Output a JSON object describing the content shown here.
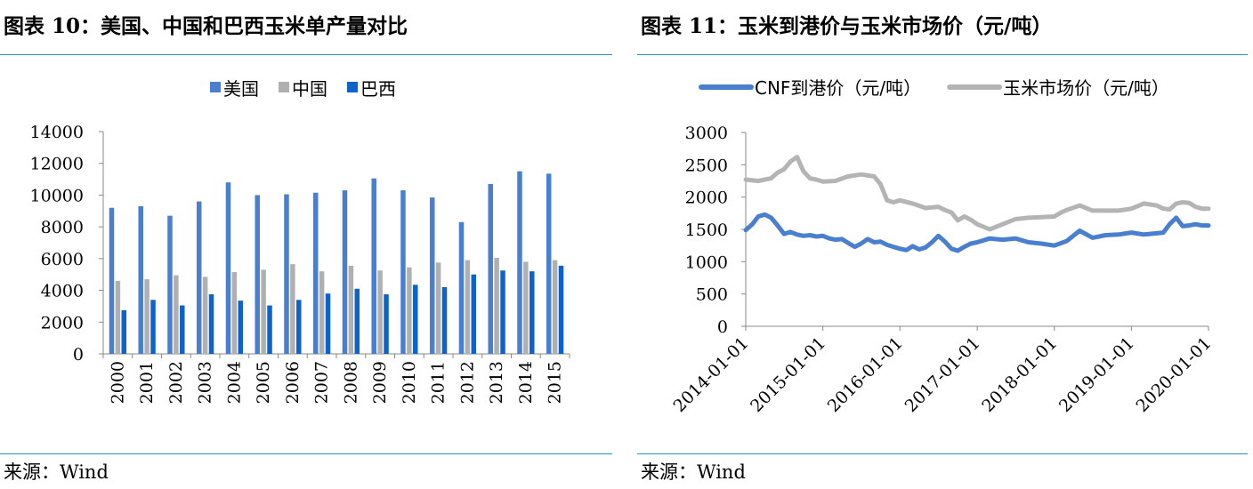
{
  "left": {
    "title": "图表 10：美国、中国和巴西玉米单产量对比",
    "source": "来源：Wind",
    "chart_data": {
      "type": "bar",
      "categories": [
        "2000",
        "2001",
        "2002",
        "2003",
        "2004",
        "2005",
        "2006",
        "2007",
        "2008",
        "2009",
        "2010",
        "2011",
        "2012",
        "2013",
        "2014",
        "2015"
      ],
      "series": [
        {
          "name": "美国",
          "color": "#4a7fd0",
          "values": [
            9200,
            9300,
            8700,
            9600,
            10800,
            10000,
            10050,
            10150,
            10300,
            11050,
            10300,
            9850,
            8300,
            10700,
            11500,
            11350
          ]
        },
        {
          "name": "中国",
          "color": "#b0b0b0",
          "values": [
            4600,
            4700,
            4950,
            4850,
            5150,
            5300,
            5650,
            5200,
            5550,
            5250,
            5450,
            5750,
            5900,
            6050,
            5800,
            5900
          ]
        },
        {
          "name": "巴西",
          "color": "#0d63c9",
          "values": [
            2750,
            3400,
            3050,
            3750,
            3350,
            3050,
            3400,
            3800,
            4100,
            3750,
            4350,
            4200,
            5000,
            5250,
            5200,
            5550
          ]
        }
      ],
      "ylim": [
        0,
        14000
      ],
      "yticks": [
        0,
        2000,
        4000,
        6000,
        8000,
        10000,
        12000,
        14000
      ],
      "legend_position": "top"
    }
  },
  "right": {
    "title": "图表 11：玉米到港价与玉米市场价（元/吨）",
    "source": "来源：Wind",
    "chart_data": {
      "type": "line",
      "x_start": "2014-01-01",
      "x_end": "2020-01-01",
      "xticks": [
        "2014-01-01",
        "2015-01-01",
        "2016-01-01",
        "2017-01-01",
        "2018-01-01",
        "2019-01-01",
        "2020-01-01"
      ],
      "ylim": [
        0,
        3000
      ],
      "yticks": [
        0,
        500,
        1000,
        1500,
        2000,
        2500,
        3000
      ],
      "legend_position": "top",
      "series": [
        {
          "name": "CNF到港价（元/吨）",
          "color": "#4a7fd0",
          "x": [
            "2014-01-01",
            "2014-02-01",
            "2014-03-01",
            "2014-04-01",
            "2014-05-01",
            "2014-06-01",
            "2014-07-01",
            "2014-08-01",
            "2014-09-01",
            "2014-10-01",
            "2014-11-01",
            "2014-12-01",
            "2015-01-01",
            "2015-02-01",
            "2015-03-01",
            "2015-04-01",
            "2015-05-01",
            "2015-06-01",
            "2015-07-01",
            "2015-08-01",
            "2015-09-01",
            "2015-10-01",
            "2015-11-01",
            "2015-12-01",
            "2016-01-01",
            "2016-02-01",
            "2016-03-01",
            "2016-04-01",
            "2016-05-01",
            "2016-06-01",
            "2016-07-01",
            "2016-08-01",
            "2016-09-01",
            "2016-10-01",
            "2016-11-01",
            "2016-12-01",
            "2017-01-01",
            "2017-03-01",
            "2017-05-01",
            "2017-07-01",
            "2017-09-01",
            "2017-11-01",
            "2018-01-01",
            "2018-03-01",
            "2018-05-01",
            "2018-07-01",
            "2018-09-01",
            "2018-11-01",
            "2019-01-01",
            "2019-03-01",
            "2019-05-01",
            "2019-06-01",
            "2019-07-01",
            "2019-08-01",
            "2019-09-01",
            "2019-10-01",
            "2019-11-01",
            "2019-12-01",
            "2020-01-01"
          ],
          "y": [
            1490,
            1580,
            1700,
            1730,
            1680,
            1560,
            1430,
            1460,
            1420,
            1400,
            1410,
            1390,
            1400,
            1360,
            1340,
            1350,
            1290,
            1230,
            1280,
            1350,
            1300,
            1310,
            1260,
            1230,
            1200,
            1180,
            1240,
            1190,
            1220,
            1300,
            1400,
            1310,
            1200,
            1170,
            1230,
            1280,
            1300,
            1360,
            1340,
            1360,
            1300,
            1280,
            1250,
            1320,
            1480,
            1370,
            1410,
            1420,
            1450,
            1420,
            1440,
            1450,
            1580,
            1680,
            1550,
            1560,
            1580,
            1560,
            1560
          ]
        },
        {
          "name": "玉米市场价（元/吨）",
          "color": "#b4b4b4",
          "x": [
            "2014-01-01",
            "2014-03-01",
            "2014-05-01",
            "2014-06-01",
            "2014-07-01",
            "2014-08-01",
            "2014-09-01",
            "2014-10-01",
            "2014-11-01",
            "2014-12-01",
            "2015-01-01",
            "2015-03-01",
            "2015-05-01",
            "2015-07-01",
            "2015-09-01",
            "2015-10-01",
            "2015-11-01",
            "2015-12-01",
            "2016-01-01",
            "2016-03-01",
            "2016-05-01",
            "2016-07-01",
            "2016-08-01",
            "2016-09-01",
            "2016-10-01",
            "2016-11-01",
            "2016-12-01",
            "2017-01-01",
            "2017-03-01",
            "2017-05-01",
            "2017-07-01",
            "2017-09-01",
            "2017-11-01",
            "2018-01-01",
            "2018-02-01",
            "2018-03-01",
            "2018-05-01",
            "2018-07-01",
            "2018-09-01",
            "2018-11-01",
            "2019-01-01",
            "2019-03-01",
            "2019-05-01",
            "2019-06-01",
            "2019-07-01",
            "2019-08-01",
            "2019-09-01",
            "2019-10-01",
            "2019-11-01",
            "2019-12-01",
            "2020-01-01"
          ],
          "y": [
            2270,
            2250,
            2290,
            2380,
            2430,
            2550,
            2620,
            2400,
            2290,
            2270,
            2240,
            2250,
            2320,
            2350,
            2320,
            2200,
            1950,
            1920,
            1950,
            1900,
            1830,
            1850,
            1800,
            1760,
            1640,
            1700,
            1650,
            1580,
            1500,
            1580,
            1660,
            1680,
            1690,
            1700,
            1760,
            1800,
            1870,
            1790,
            1790,
            1790,
            1820,
            1900,
            1870,
            1820,
            1810,
            1900,
            1920,
            1910,
            1850,
            1820,
            1820
          ]
        }
      ]
    }
  }
}
